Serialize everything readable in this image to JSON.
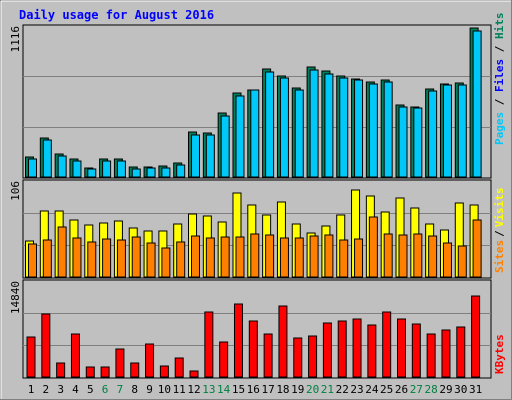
{
  "chart_data": {
    "type": "bar",
    "title": "Daily usage for August 2016",
    "categories": [
      "1",
      "2",
      "3",
      "4",
      "5",
      "6",
      "7",
      "8",
      "9",
      "10",
      "11",
      "12",
      "13",
      "14",
      "15",
      "16",
      "17",
      "18",
      "19",
      "20",
      "21",
      "22",
      "23",
      "24",
      "25",
      "26",
      "27",
      "28",
      "29",
      "30",
      "31"
    ],
    "weekend_days": [
      "6",
      "7",
      "13",
      "14",
      "20",
      "21",
      "27",
      "28"
    ],
    "panels": [
      {
        "id": "hits",
        "ymax_label": "1116",
        "ymax": 1116,
        "labels": [
          "Pages",
          "Files",
          "Hits"
        ],
        "series": [
          {
            "name": "Hits",
            "color": "#00805c",
            "values": [
              145,
              290,
              170,
              130,
              70,
              130,
              135,
              75,
              75,
              82,
              105,
              330,
              325,
              470,
              620,
              645,
              800,
              750,
              655,
              810,
              780,
              750,
              725,
              705,
              720,
              530,
              515,
              650,
              690,
              695,
              1100
            ]
          },
          {
            "name": "Files",
            "color": "#00c8f8",
            "values": [
              135,
              270,
              155,
              120,
              60,
              115,
              120,
              60,
              65,
              70,
              85,
              310,
              310,
              450,
              600,
              640,
              775,
              730,
              640,
              790,
              760,
              735,
              715,
              690,
              700,
              520,
              510,
              635,
              680,
              680,
              1080
            ]
          }
        ]
      },
      {
        "id": "visits",
        "ymax_label": "106",
        "ymax": 106,
        "labels": [
          "Sites",
          "/",
          "Visits"
        ],
        "series": [
          {
            "name": "Visits",
            "color": "#ffff00",
            "values": [
              40,
              73,
              73,
              63,
              57,
              60,
              62,
              54,
              51,
              51,
              59,
              70,
              67,
              61,
              93,
              79,
              69,
              83,
              58,
              49,
              56,
              69,
              96,
              89,
              72,
              87,
              76,
              58,
              52,
              82,
              80
            ]
          },
          {
            "name": "Sites",
            "color": "#ff8000",
            "values": [
              36,
              41,
              55,
              43,
              39,
              42,
              41,
              44,
              38,
              32,
              39,
              45,
              43,
              44,
              44,
              47,
              46,
              43,
              43,
              45,
              46,
              41,
              42,
              66,
              47,
              46,
              47,
              45,
              37,
              34,
              63
            ]
          }
        ]
      },
      {
        "id": "kbytes",
        "ymax_label": "14840",
        "ymax": 14840,
        "labels": [
          "KBytes"
        ],
        "series": [
          {
            "name": "KBytes",
            "color": "#ff0000",
            "values": [
              6200,
              9800,
              2200,
              6600,
              1600,
              1500,
              4300,
              2100,
              5100,
              1700,
              3000,
              1000,
              10100,
              5400,
              11300,
              8700,
              6700,
              10900,
              6100,
              6400,
              8400,
              8600,
              8900,
              8000,
              10000,
              8900,
              8200,
              6700,
              7200,
              7800,
              12500
            ]
          }
        ]
      }
    ]
  }
}
